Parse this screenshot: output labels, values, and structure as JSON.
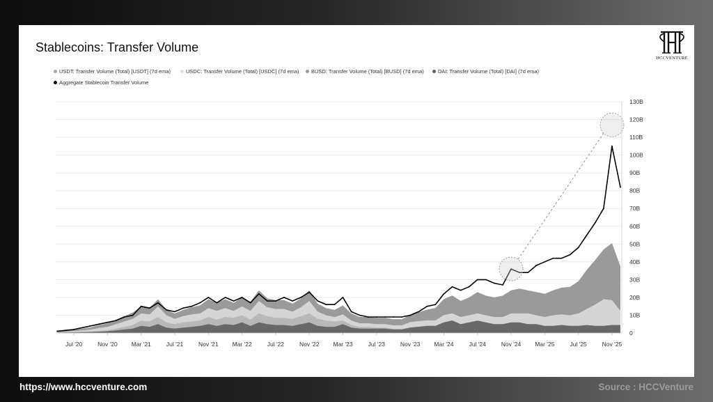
{
  "title": "Stablecoins: Transfer Volume",
  "footer": {
    "url": "https://www.hccventure.com",
    "source": "Source : HCCVenture"
  },
  "logo": {
    "text": "HCCVENTURE"
  },
  "colors": {
    "usdt": "#8f8f8f",
    "usdc": "#dcdcdc",
    "busd": "#b5b5b5",
    "dai": "#5f5f5f",
    "aggregate": "#000000",
    "highlight": "#d0d0d0"
  },
  "legend": [
    {
      "label": "USDT: Transfer Volume (Total) [USDT] (7d ema)",
      "color": "#a8a8a8"
    },
    {
      "label": "USDC: Transfer Volume (Total) [USDC] (7d ema)",
      "color": "#dcdcdc"
    },
    {
      "label": "BUSD: Transfer Volume (Total) [BUSD] (7d ema)",
      "color": "#9a9a9a"
    },
    {
      "label": "DAI: Transfer Volume (Total) [DAI] (7d ema)",
      "color": "#5f5f5f"
    },
    {
      "label": "Aggregate Stablecoin Transfer Volume",
      "color": "#000000"
    }
  ],
  "chart_data": {
    "type": "area",
    "title": "Stablecoins: Transfer Volume",
    "ylim": [
      0,
      130
    ],
    "y_unit": "B",
    "y_ticks": [
      "0",
      "10B",
      "20B",
      "30B",
      "40B",
      "50B",
      "60B",
      "70B",
      "80B",
      "90B",
      "100B",
      "110B",
      "120B",
      "130B"
    ],
    "x_ticks": [
      "Jul '20",
      "Nov '20",
      "Mar '21",
      "Jul '21",
      "Nov '21",
      "Mar '22",
      "Jul '22",
      "Nov '22",
      "Mar '23",
      "Jul '23",
      "Nov '23",
      "Mar '24",
      "Jul '24",
      "Nov '24",
      "Mar '25",
      "Jul '25",
      "Nov '25"
    ],
    "grid": true,
    "legend_position": "top-left",
    "x": [
      "2020-05",
      "2020-06",
      "2020-07",
      "2020-08",
      "2020-09",
      "2020-10",
      "2020-11",
      "2020-12",
      "2021-01",
      "2021-02",
      "2021-03",
      "2021-04",
      "2021-05",
      "2021-06",
      "2021-07",
      "2021-08",
      "2021-09",
      "2021-10",
      "2021-11",
      "2021-12",
      "2022-01",
      "2022-02",
      "2022-03",
      "2022-04",
      "2022-05",
      "2022-06",
      "2022-07",
      "2022-08",
      "2022-09",
      "2022-10",
      "2022-11",
      "2022-12",
      "2023-01",
      "2023-02",
      "2023-03",
      "2023-04",
      "2023-05",
      "2023-06",
      "2023-07",
      "2023-08",
      "2023-09",
      "2023-10",
      "2023-11",
      "2023-12",
      "2024-01",
      "2024-02",
      "2024-03",
      "2024-04",
      "2024-05",
      "2024-06",
      "2024-07",
      "2024-08",
      "2024-09",
      "2024-10",
      "2024-11",
      "2024-12",
      "2025-01",
      "2025-02",
      "2025-03",
      "2025-04",
      "2025-05",
      "2025-06",
      "2025-07",
      "2025-08",
      "2025-09",
      "2025-10",
      "2025-11",
      "2025-12"
    ],
    "series": [
      {
        "name": "DAI: Transfer Volume (Total) [DAI] (7d ema)",
        "values": [
          0.2,
          0.3,
          0.4,
          0.5,
          0.6,
          0.8,
          1,
          1.5,
          2,
          2.5,
          4,
          3.5,
          5,
          3,
          2.5,
          3,
          3.5,
          4,
          5,
          4,
          5,
          4.5,
          6,
          4,
          6,
          5,
          4.5,
          4.5,
          4,
          5,
          6,
          4,
          3.5,
          3.5,
          5,
          3,
          2.5,
          2.5,
          2.5,
          2.5,
          2,
          2,
          3,
          3.5,
          4,
          4,
          6,
          7,
          5,
          6,
          7,
          6,
          5,
          5,
          6,
          6,
          5,
          5,
          4,
          4,
          4.5,
          4,
          4,
          4.5,
          4,
          4,
          4.5,
          4.5
        ]
      },
      {
        "name": "BUSD: Transfer Volume (Total) [BUSD] (7d ema)",
        "values": [
          0,
          0,
          0.1,
          0.2,
          0.3,
          0.5,
          0.5,
          1,
          1.5,
          2,
          3,
          3,
          4,
          3,
          2.5,
          3,
          3,
          3,
          4,
          3.5,
          4,
          4,
          4,
          3.5,
          5,
          4.5,
          4,
          4,
          4,
          4.5,
          5,
          4,
          3.5,
          3,
          2,
          1.5,
          1,
          1,
          0.5,
          0.5,
          0.3,
          0.3,
          0.2,
          0.2,
          0.1,
          0.1,
          0.1,
          0.1,
          0,
          0,
          0,
          0,
          0,
          0,
          0,
          0,
          0,
          0,
          0,
          0,
          0,
          0,
          0,
          0,
          0,
          0,
          0,
          0
        ]
      },
      {
        "name": "USDC: Transfer Volume (Total) [USDC] (7d ema)",
        "values": [
          0.3,
          0.4,
          0.6,
          0.8,
          1,
          1.5,
          2,
          2.5,
          3,
          3.5,
          4,
          4,
          6,
          4,
          3,
          3.5,
          4,
          4,
          5,
          5,
          5,
          4,
          5,
          5,
          7,
          5,
          5,
          5,
          4,
          5,
          7,
          4,
          3,
          2.5,
          3.5,
          2.5,
          2,
          2,
          2,
          2,
          2,
          2,
          3,
          3,
          3,
          3,
          4,
          4,
          4,
          4,
          4,
          4,
          4,
          4,
          5,
          5,
          6,
          5,
          5,
          6,
          6,
          6,
          7,
          9,
          12,
          15,
          14,
          8
        ]
      },
      {
        "name": "USDT: Transfer Volume (Total) [USDT] (7d ema)",
        "values": [
          0.5,
          0.6,
          0.8,
          1,
          1.3,
          1.7,
          2,
          2.5,
          3,
          3.5,
          4,
          3.5,
          4,
          3,
          3,
          3.5,
          4,
          4.5,
          5,
          4.5,
          5,
          4.5,
          5,
          5,
          6,
          5,
          5,
          5,
          4.5,
          5,
          6,
          4.5,
          4,
          4,
          5,
          4,
          3.5,
          3.5,
          3.5,
          3.5,
          3.5,
          3.5,
          4,
          5,
          6,
          7,
          9,
          10,
          9,
          10,
          12,
          11,
          11,
          12,
          13,
          14,
          13,
          13,
          13,
          14,
          15,
          16,
          18,
          22,
          25,
          28,
          32,
          25
        ]
      },
      {
        "name": "Aggregate Stablecoin Transfer Volume",
        "values": [
          1,
          1.5,
          2,
          3,
          4,
          5,
          6,
          7,
          9,
          10,
          15,
          14,
          17,
          13,
          12,
          14,
          15,
          17,
          20,
          17,
          20,
          18,
          20,
          17,
          22,
          18,
          18,
          20,
          18,
          20,
          23,
          18,
          16,
          16,
          20,
          12,
          10,
          9,
          9,
          9,
          9,
          9,
          10,
          12,
          15,
          16,
          22,
          26,
          24,
          26,
          30,
          30,
          28,
          27,
          36,
          34,
          34,
          38,
          40,
          42,
          42,
          44,
          48,
          55,
          62,
          70,
          105,
          82
        ]
      }
    ],
    "annotations": [
      "circle near Nov '24 peak",
      "circle at Nov '25 peak (~117B)",
      "dashed line connecting the two circles"
    ]
  }
}
